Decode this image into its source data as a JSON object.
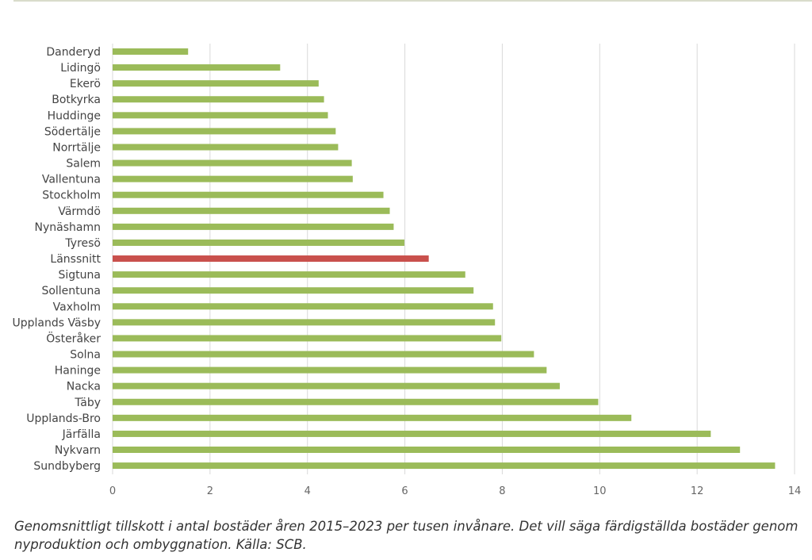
{
  "chart_data": {
    "type": "bar",
    "orientation": "horizontal",
    "categories": [
      "Danderyd",
      "Lidingö",
      "Ekerö",
      "Botkyrka",
      "Huddinge",
      "Södertälje",
      "Norrtälje",
      "Salem",
      "Vallentuna",
      "Stockholm",
      "Värmdö",
      "Nynäshamn",
      "Tyresö",
      "Länssnitt",
      "Sigtuna",
      "Sollentuna",
      "Vaxholm",
      "Upplands Väsby",
      "Österåker",
      "Solna",
      "Haninge",
      "Nacka",
      "Täby",
      "Upplands-Bro",
      "Järfälla",
      "Nykvarn",
      "Sundbyberg"
    ],
    "values": [
      1.55,
      3.44,
      4.23,
      4.34,
      4.42,
      4.58,
      4.63,
      4.91,
      4.93,
      5.56,
      5.69,
      5.77,
      5.99,
      6.49,
      7.24,
      7.41,
      7.81,
      7.85,
      7.98,
      8.65,
      8.91,
      9.18,
      9.97,
      10.65,
      12.28,
      12.88,
      13.6
    ],
    "highlight": "Länssnitt",
    "colors": {
      "bar": "#9bbb59",
      "highlight": "#c9504c",
      "grid": "#d9d9d9"
    },
    "xlim": [
      0,
      14
    ],
    "xticks": [
      "0",
      "2",
      "4",
      "6",
      "8",
      "10",
      "12",
      "14"
    ],
    "grid": true,
    "title": "",
    "xlabel": "",
    "ylabel": ""
  },
  "caption": "Genomsnittligt tillskott i antal bostäder åren 2015–2023 per tusen invånare. Det vill säga färdigställda bostäder genom nyproduktion och ombyggnation. Källa: SCB."
}
